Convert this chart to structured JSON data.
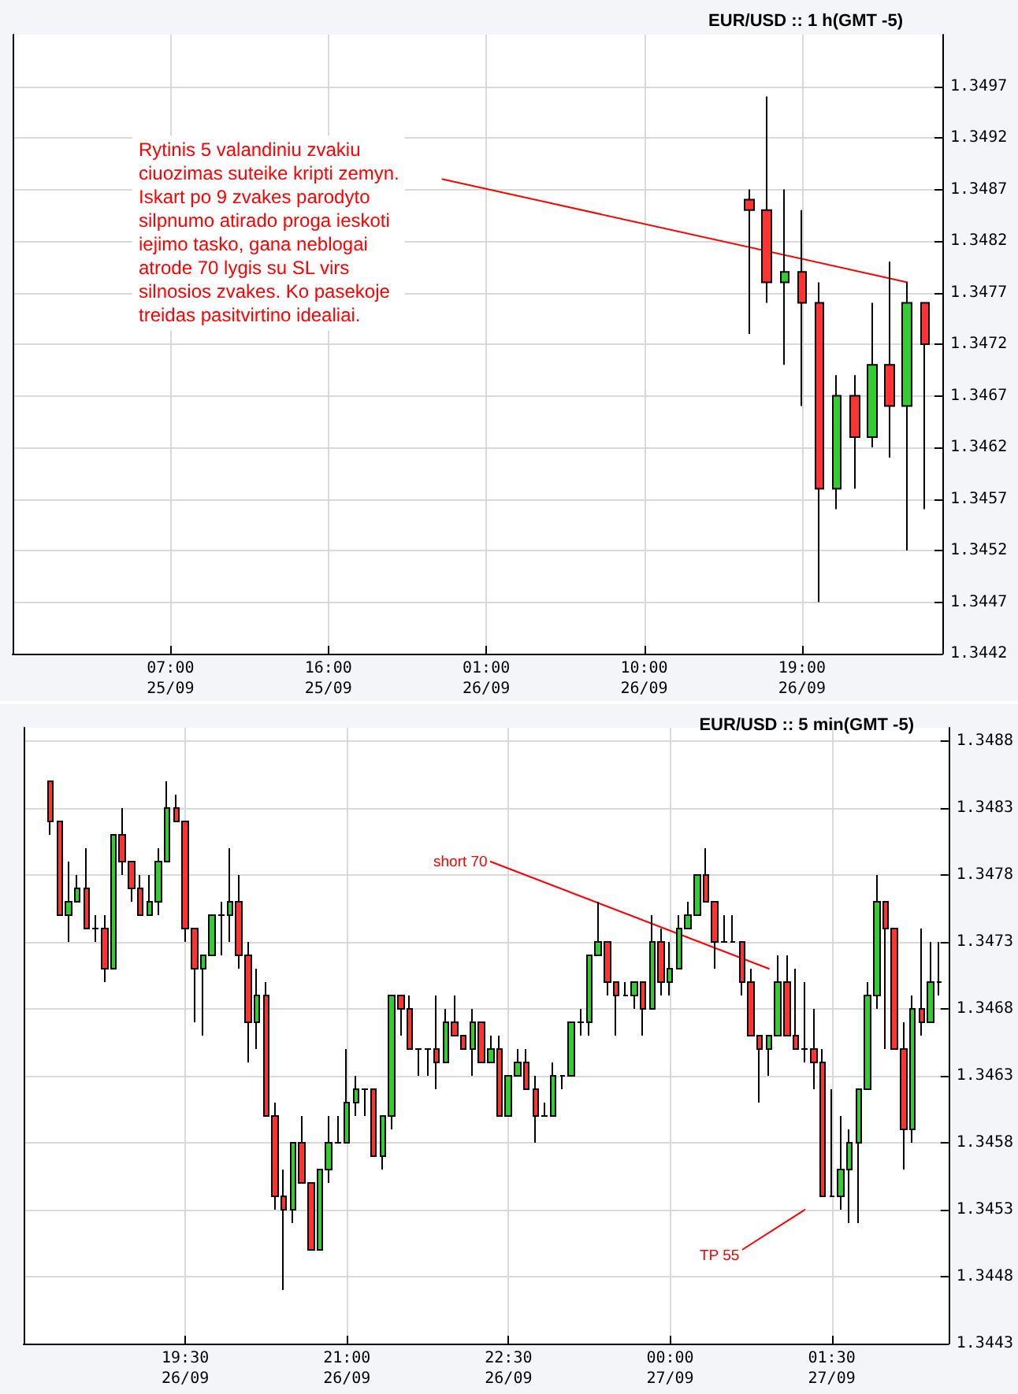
{
  "chart_data": [
    {
      "type": "candlestick",
      "title": "EUR/USD :: 1 h(GMT -5)",
      "x": [
        "--09-26T16:00",
        "--09-26T17:00",
        "--09-26T18:00",
        "--09-26T19:00",
        "--09-26T20:00",
        "--09-26T21:00",
        "--09-26T22:00",
        "--09-26T23:00",
        "--09-27T00:00",
        "--09-27T01:00",
        "--09-27T02:00"
      ],
      "ohlc": [
        [
          1.3486,
          1.3487,
          1.3473,
          1.3485
        ],
        [
          1.3485,
          1.3496,
          1.3476,
          1.3478
        ],
        [
          1.3478,
          1.3487,
          1.347,
          1.3479
        ],
        [
          1.3479,
          1.3485,
          1.3466,
          1.3476
        ],
        [
          1.3476,
          1.3478,
          1.3447,
          1.3458
        ],
        [
          1.3458,
          1.3469,
          1.3456,
          1.3467
        ],
        [
          1.3467,
          1.3469,
          1.3458,
          1.3463
        ],
        [
          1.3463,
          1.3476,
          1.3462,
          1.347
        ],
        [
          1.347,
          1.348,
          1.3461,
          1.3466
        ],
        [
          1.3466,
          1.3478,
          1.3452,
          1.3476
        ],
        [
          1.3476,
          1.3476,
          1.3456,
          1.3472
        ]
      ],
      "colors": [
        "#ff3333",
        "#ff3333",
        "#33cc33",
        "#ff3333",
        "#ff3333",
        "#33cc33",
        "#ff3333",
        "#33cc33",
        "#ff3333",
        "#33cc33",
        "#ff3333"
      ],
      "series": [
        {
          "type": "line",
          "x": [
            "--09-25T22:30",
            "--09-27T01:00"
          ],
          "values": [
            1.3488,
            1.3478
          ],
          "color": "#ff0000"
        }
      ],
      "xlim": [
        "--09-24T22:00",
        "--09-27T03:00"
      ],
      "xticks": [
        {
          "value": "--09-25T07:00",
          "label": "07:00\n25/09"
        },
        {
          "value": "--09-25T16:00",
          "label": "16:00\n25/09"
        },
        {
          "value": "--09-26T01:00",
          "label": "01:00\n26/09"
        },
        {
          "value": "--09-26T10:00",
          "label": "10:00\n26/09"
        },
        {
          "value": "--09-26T19:00",
          "label": "19:00\n26/09"
        }
      ],
      "ylim": [
        1.3442,
        1.3502
      ],
      "yticks": [
        1.3442,
        1.3447,
        1.3452,
        1.3457,
        1.3462,
        1.3467,
        1.3472,
        1.3477,
        1.3482,
        1.3487,
        1.3492,
        1.3497
      ],
      "grid": true,
      "annotations": [
        "Rytinis 5 valandiniu zvakiu\nciuozimas suteike kripti zemyn.\nIskart po 9 zvakes parodyto\nsilpnumo atirado proga ieskoti\niejimo tasko, gana neblogai\natrode 70 lygis su SL virs\nsilnosios zvakes. Ko pasekoje\ntreidas pasitvirtino idealiai."
      ]
    },
    {
      "type": "candlestick",
      "title": "EUR/USD :: 5 min(GMT -5)",
      "x": [
        "--09-26T18:15",
        "--09-26T18:20",
        "--09-26T18:25",
        "--09-26T18:30",
        "--09-26T18:35",
        "--09-26T18:40",
        "--09-26T18:45",
        "--09-26T18:50",
        "--09-26T18:55",
        "--09-26T19:00",
        "--09-26T19:05",
        "--09-26T19:10",
        "--09-26T19:15",
        "--09-26T19:20",
        "--09-26T19:25",
        "--09-26T19:30",
        "--09-26T19:35",
        "--09-26T19:40",
        "--09-26T19:45",
        "--09-26T19:50",
        "--09-26T19:55",
        "--09-26T20:00",
        "--09-26T20:05",
        "--09-26T20:10",
        "--09-26T20:15",
        "--09-26T20:20",
        "--09-26T20:25",
        "--09-26T20:30",
        "--09-26T20:35",
        "--09-26T20:40",
        "--09-26T20:45",
        "--09-26T20:50",
        "--09-26T20:55",
        "--09-26T21:00",
        "--09-26T21:05",
        "--09-26T21:10",
        "--09-26T21:15",
        "--09-26T21:20",
        "--09-26T21:25",
        "--09-26T21:30",
        "--09-26T21:35",
        "--09-26T21:40",
        "--09-26T21:45",
        "--09-26T21:50",
        "--09-26T21:55",
        "--09-26T22:00",
        "--09-26T22:05",
        "--09-26T22:10",
        "--09-26T22:15",
        "--09-26T22:20",
        "--09-26T22:25",
        "--09-26T22:30",
        "--09-26T22:35",
        "--09-26T22:40",
        "--09-26T22:45",
        "--09-26T22:50",
        "--09-26T22:55",
        "--09-26T23:00",
        "--09-26T23:05",
        "--09-26T23:10",
        "--09-26T23:15",
        "--09-26T23:20",
        "--09-26T23:25",
        "--09-26T23:30",
        "--09-26T23:35",
        "--09-26T23:40",
        "--09-26T23:45",
        "--09-26T23:50",
        "--09-26T23:55",
        "--09-27T00:00",
        "--09-27T00:05",
        "--09-27T00:10",
        "--09-27T00:15",
        "--09-27T00:20",
        "--09-27T00:25",
        "--09-27T00:30",
        "--09-27T00:35",
        "--09-27T00:40",
        "--09-27T00:45",
        "--09-27T00:50",
        "--09-27T00:55",
        "--09-27T01:00",
        "--09-27T01:05",
        "--09-27T01:10",
        "--09-27T01:15",
        "--09-27T01:20",
        "--09-27T01:25",
        "--09-27T01:30",
        "--09-27T01:35",
        "--09-27T01:40",
        "--09-27T01:45",
        "--09-27T01:50",
        "--09-27T01:55",
        "--09-27T02:00",
        "--09-27T02:05",
        "--09-27T02:10",
        "--09-27T02:15",
        "--09-27T02:20",
        "--09-27T02:25",
        "--09-27T02:30"
      ],
      "ohlc": [
        [
          1.3485,
          1.3485,
          1.3481,
          1.3482
        ],
        [
          1.3482,
          1.3482,
          1.3475,
          1.3475
        ],
        [
          1.3475,
          1.3479,
          1.3473,
          1.3476
        ],
        [
          1.3476,
          1.3478,
          1.3476,
          1.3477
        ],
        [
          1.3477,
          1.348,
          1.3474,
          1.3474
        ],
        [
          1.3474,
          1.3475,
          1.3473,
          1.3474
        ],
        [
          1.3474,
          1.3475,
          1.347,
          1.3471
        ],
        [
          1.3471,
          1.3481,
          1.3471,
          1.3481
        ],
        [
          1.3481,
          1.3483,
          1.3478,
          1.3479
        ],
        [
          1.3479,
          1.3479,
          1.3476,
          1.3477
        ],
        [
          1.3477,
          1.3478,
          1.3475,
          1.3475
        ],
        [
          1.3475,
          1.3478,
          1.3475,
          1.3476
        ],
        [
          1.3476,
          1.348,
          1.3475,
          1.3479
        ],
        [
          1.3479,
          1.3485,
          1.3479,
          1.3483
        ],
        [
          1.3483,
          1.3484,
          1.3482,
          1.3482
        ],
        [
          1.3482,
          1.3482,
          1.3473,
          1.3474
        ],
        [
          1.3474,
          1.3474,
          1.3467,
          1.3471
        ],
        [
          1.3471,
          1.3472,
          1.3466,
          1.3472
        ],
        [
          1.3472,
          1.3475,
          1.3472,
          1.3475
        ],
        [
          1.3475,
          1.3476,
          1.3472,
          1.3475
        ],
        [
          1.3475,
          1.348,
          1.3473,
          1.3476
        ],
        [
          1.3476,
          1.3478,
          1.3471,
          1.3472
        ],
        [
          1.3472,
          1.3473,
          1.3464,
          1.3467
        ],
        [
          1.3467,
          1.3471,
          1.3465,
          1.3469
        ],
        [
          1.3469,
          1.347,
          1.346,
          1.346
        ],
        [
          1.346,
          1.3461,
          1.3453,
          1.3454
        ],
        [
          1.3454,
          1.3456,
          1.3447,
          1.3453
        ],
        [
          1.3453,
          1.3458,
          1.3452,
          1.3458
        ],
        [
          1.3458,
          1.346,
          1.3455,
          1.3455
        ],
        [
          1.3455,
          1.3455,
          1.345,
          1.345
        ],
        [
          1.345,
          1.3456,
          1.345,
          1.3456
        ],
        [
          1.3456,
          1.346,
          1.3455,
          1.3458
        ],
        [
          1.3458,
          1.346,
          1.3458,
          1.3458
        ],
        [
          1.3458,
          1.3465,
          1.3458,
          1.3461
        ],
        [
          1.3461,
          1.3463,
          1.346,
          1.3462
        ],
        [
          1.3462,
          1.3462,
          1.346,
          1.3462
        ],
        [
          1.3462,
          1.3462,
          1.3457,
          1.3457
        ],
        [
          1.3457,
          1.346,
          1.3456,
          1.346
        ],
        [
          1.346,
          1.3469,
          1.3459,
          1.3469
        ],
        [
          1.3469,
          1.3469,
          1.3466,
          1.3468
        ],
        [
          1.3468,
          1.3469,
          1.3465,
          1.3465
        ],
        [
          1.3465,
          1.3465,
          1.3463,
          1.3465
        ],
        [
          1.3465,
          1.3465,
          1.3463,
          1.3465
        ],
        [
          1.3465,
          1.3469,
          1.3462,
          1.3464
        ],
        [
          1.3464,
          1.3468,
          1.3464,
          1.3467
        ],
        [
          1.3467,
          1.3469,
          1.3466,
          1.3466
        ],
        [
          1.3466,
          1.3466,
          1.3465,
          1.3465
        ],
        [
          1.3465,
          1.3468,
          1.3463,
          1.3467
        ],
        [
          1.3467,
          1.3467,
          1.3464,
          1.3464
        ],
        [
          1.3464,
          1.3466,
          1.3464,
          1.3465
        ],
        [
          1.3465,
          1.3466,
          1.346,
          1.346
        ],
        [
          1.346,
          1.3463,
          1.346,
          1.3463
        ],
        [
          1.3463,
          1.3465,
          1.3463,
          1.3464
        ],
        [
          1.3464,
          1.3465,
          1.3462,
          1.3462
        ],
        [
          1.3462,
          1.3463,
          1.3458,
          1.346
        ],
        [
          1.346,
          1.3461,
          1.346,
          1.346
        ],
        [
          1.346,
          1.3464,
          1.346,
          1.3463
        ],
        [
          1.3463,
          1.3463,
          1.3462,
          1.3463
        ],
        [
          1.3463,
          1.3467,
          1.3463,
          1.3467
        ],
        [
          1.3467,
          1.3468,
          1.3466,
          1.3467
        ],
        [
          1.3467,
          1.3472,
          1.3466,
          1.3472
        ],
        [
          1.3472,
          1.3476,
          1.3472,
          1.3473
        ],
        [
          1.3473,
          1.3473,
          1.3469,
          1.347
        ],
        [
          1.347,
          1.347,
          1.3466,
          1.3469
        ],
        [
          1.3469,
          1.347,
          1.3469,
          1.3469
        ],
        [
          1.3469,
          1.347,
          1.3468,
          1.347
        ],
        [
          1.347,
          1.347,
          1.3466,
          1.3468
        ],
        [
          1.3468,
          1.3475,
          1.3468,
          1.3473
        ],
        [
          1.3473,
          1.3474,
          1.3469,
          1.347
        ],
        [
          1.347,
          1.3473,
          1.3469,
          1.3471
        ],
        [
          1.3471,
          1.3475,
          1.3471,
          1.3474
        ],
        [
          1.3474,
          1.3476,
          1.3474,
          1.3475
        ],
        [
          1.3475,
          1.3478,
          1.3475,
          1.3478
        ],
        [
          1.3478,
          1.348,
          1.3476,
          1.3476
        ],
        [
          1.3476,
          1.3476,
          1.3471,
          1.3473
        ],
        [
          1.3473,
          1.3475,
          1.3473,
          1.3473
        ],
        [
          1.3473,
          1.3475,
          1.3473,
          1.3473
        ],
        [
          1.3473,
          1.3473,
          1.3469,
          1.347
        ],
        [
          1.347,
          1.3471,
          1.3466,
          1.3466
        ],
        [
          1.3466,
          1.3466,
          1.3461,
          1.3465
        ],
        [
          1.3465,
          1.3466,
          1.3463,
          1.3466
        ],
        [
          1.3466,
          1.3472,
          1.3466,
          1.347
        ],
        [
          1.347,
          1.3472,
          1.3466,
          1.3466
        ],
        [
          1.3466,
          1.3471,
          1.3465,
          1.3465
        ],
        [
          1.3465,
          1.347,
          1.3464,
          1.3465
        ],
        [
          1.3465,
          1.3468,
          1.3462,
          1.3464
        ],
        [
          1.3464,
          1.3465,
          1.3454,
          1.3454
        ],
        [
          1.3454,
          1.3462,
          1.3454,
          1.3454
        ],
        [
          1.3454,
          1.346,
          1.3453,
          1.3456
        ],
        [
          1.3456,
          1.3459,
          1.3452,
          1.3458
        ],
        [
          1.3458,
          1.3462,
          1.3452,
          1.3462
        ],
        [
          1.3462,
          1.347,
          1.3462,
          1.3469
        ],
        [
          1.3469,
          1.3478,
          1.3468,
          1.3476
        ],
        [
          1.3476,
          1.3476,
          1.3465,
          1.3474
        ],
        [
          1.3474,
          1.3474,
          1.3465,
          1.3465
        ],
        [
          1.3465,
          1.3467,
          1.3456,
          1.3459
        ],
        [
          1.3459,
          1.3469,
          1.3458,
          1.3468
        ],
        [
          1.3468,
          1.3474,
          1.3466,
          1.3467
        ],
        [
          1.3467,
          1.3473,
          1.3467,
          1.347
        ],
        [
          1.347,
          1.3473,
          1.3469,
          1.347
        ]
      ],
      "colors": [
        "#ff3333",
        "#ff3333",
        "#33cc33",
        "#33cc33",
        "#ff3333",
        "#000000",
        "#ff3333",
        "#33cc33",
        "#ff3333",
        "#ff3333",
        "#ff3333",
        "#33cc33",
        "#33cc33",
        "#33cc33",
        "#ff3333",
        "#ff3333",
        "#ff3333",
        "#33cc33",
        "#33cc33",
        "#000000",
        "#33cc33",
        "#ff3333",
        "#ff3333",
        "#33cc33",
        "#ff3333",
        "#ff3333",
        "#ff3333",
        "#33cc33",
        "#ff3333",
        "#ff3333",
        "#33cc33",
        "#33cc33",
        "#000000",
        "#33cc33",
        "#33cc33",
        "#000000",
        "#ff3333",
        "#33cc33",
        "#33cc33",
        "#ff3333",
        "#ff3333",
        "#000000",
        "#000000",
        "#ff3333",
        "#33cc33",
        "#ff3333",
        "#ff3333",
        "#33cc33",
        "#ff3333",
        "#33cc33",
        "#ff3333",
        "#33cc33",
        "#33cc33",
        "#ff3333",
        "#ff3333",
        "#000000",
        "#33cc33",
        "#000000",
        "#33cc33",
        "#000000",
        "#33cc33",
        "#33cc33",
        "#ff3333",
        "#ff3333",
        "#000000",
        "#33cc33",
        "#ff3333",
        "#33cc33",
        "#ff3333",
        "#33cc33",
        "#33cc33",
        "#33cc33",
        "#33cc33",
        "#ff3333",
        "#ff3333",
        "#000000",
        "#000000",
        "#ff3333",
        "#ff3333",
        "#ff3333",
        "#33cc33",
        "#33cc33",
        "#ff3333",
        "#ff3333",
        "#000000",
        "#ff3333",
        "#ff3333",
        "#000000",
        "#33cc33",
        "#33cc33",
        "#33cc33",
        "#33cc33",
        "#33cc33",
        "#ff3333",
        "#ff3333",
        "#ff3333",
        "#33cc33",
        "#ff3333",
        "#33cc33",
        "#000000"
      ],
      "series": [
        {
          "type": "line",
          "x": [
            "--09-26T22:20",
            "--09-27T00:55"
          ],
          "values": [
            1.3479,
            1.3471
          ],
          "color": "#ff0000"
        },
        {
          "type": "line",
          "x": [
            "--09-27T00:40",
            "--09-27T01:15"
          ],
          "values": [
            1.345,
            1.3453
          ],
          "color": "#ff0000"
        }
      ],
      "xlim": [
        "--09-26T18:00",
        "--09-27T02:35"
      ],
      "xticks": [
        {
          "value": "--09-26T19:30",
          "label": "19:30\n26/09"
        },
        {
          "value": "--09-26T21:00",
          "label": "21:00\n26/09"
        },
        {
          "value": "--09-26T22:30",
          "label": "22:30\n26/09"
        },
        {
          "value": "--09-27T00:00",
          "label": "00:00\n27/09"
        },
        {
          "value": "--09-27T01:30",
          "label": "01:30\n27/09"
        }
      ],
      "ylim": [
        1.3443,
        1.3489
      ],
      "yticks": [
        1.3443,
        1.3448,
        1.3453,
        1.3458,
        1.3463,
        1.3468,
        1.3473,
        1.3478,
        1.3483,
        1.3488
      ],
      "grid": true,
      "annotations": [
        "short 70",
        "TP 55"
      ]
    }
  ]
}
